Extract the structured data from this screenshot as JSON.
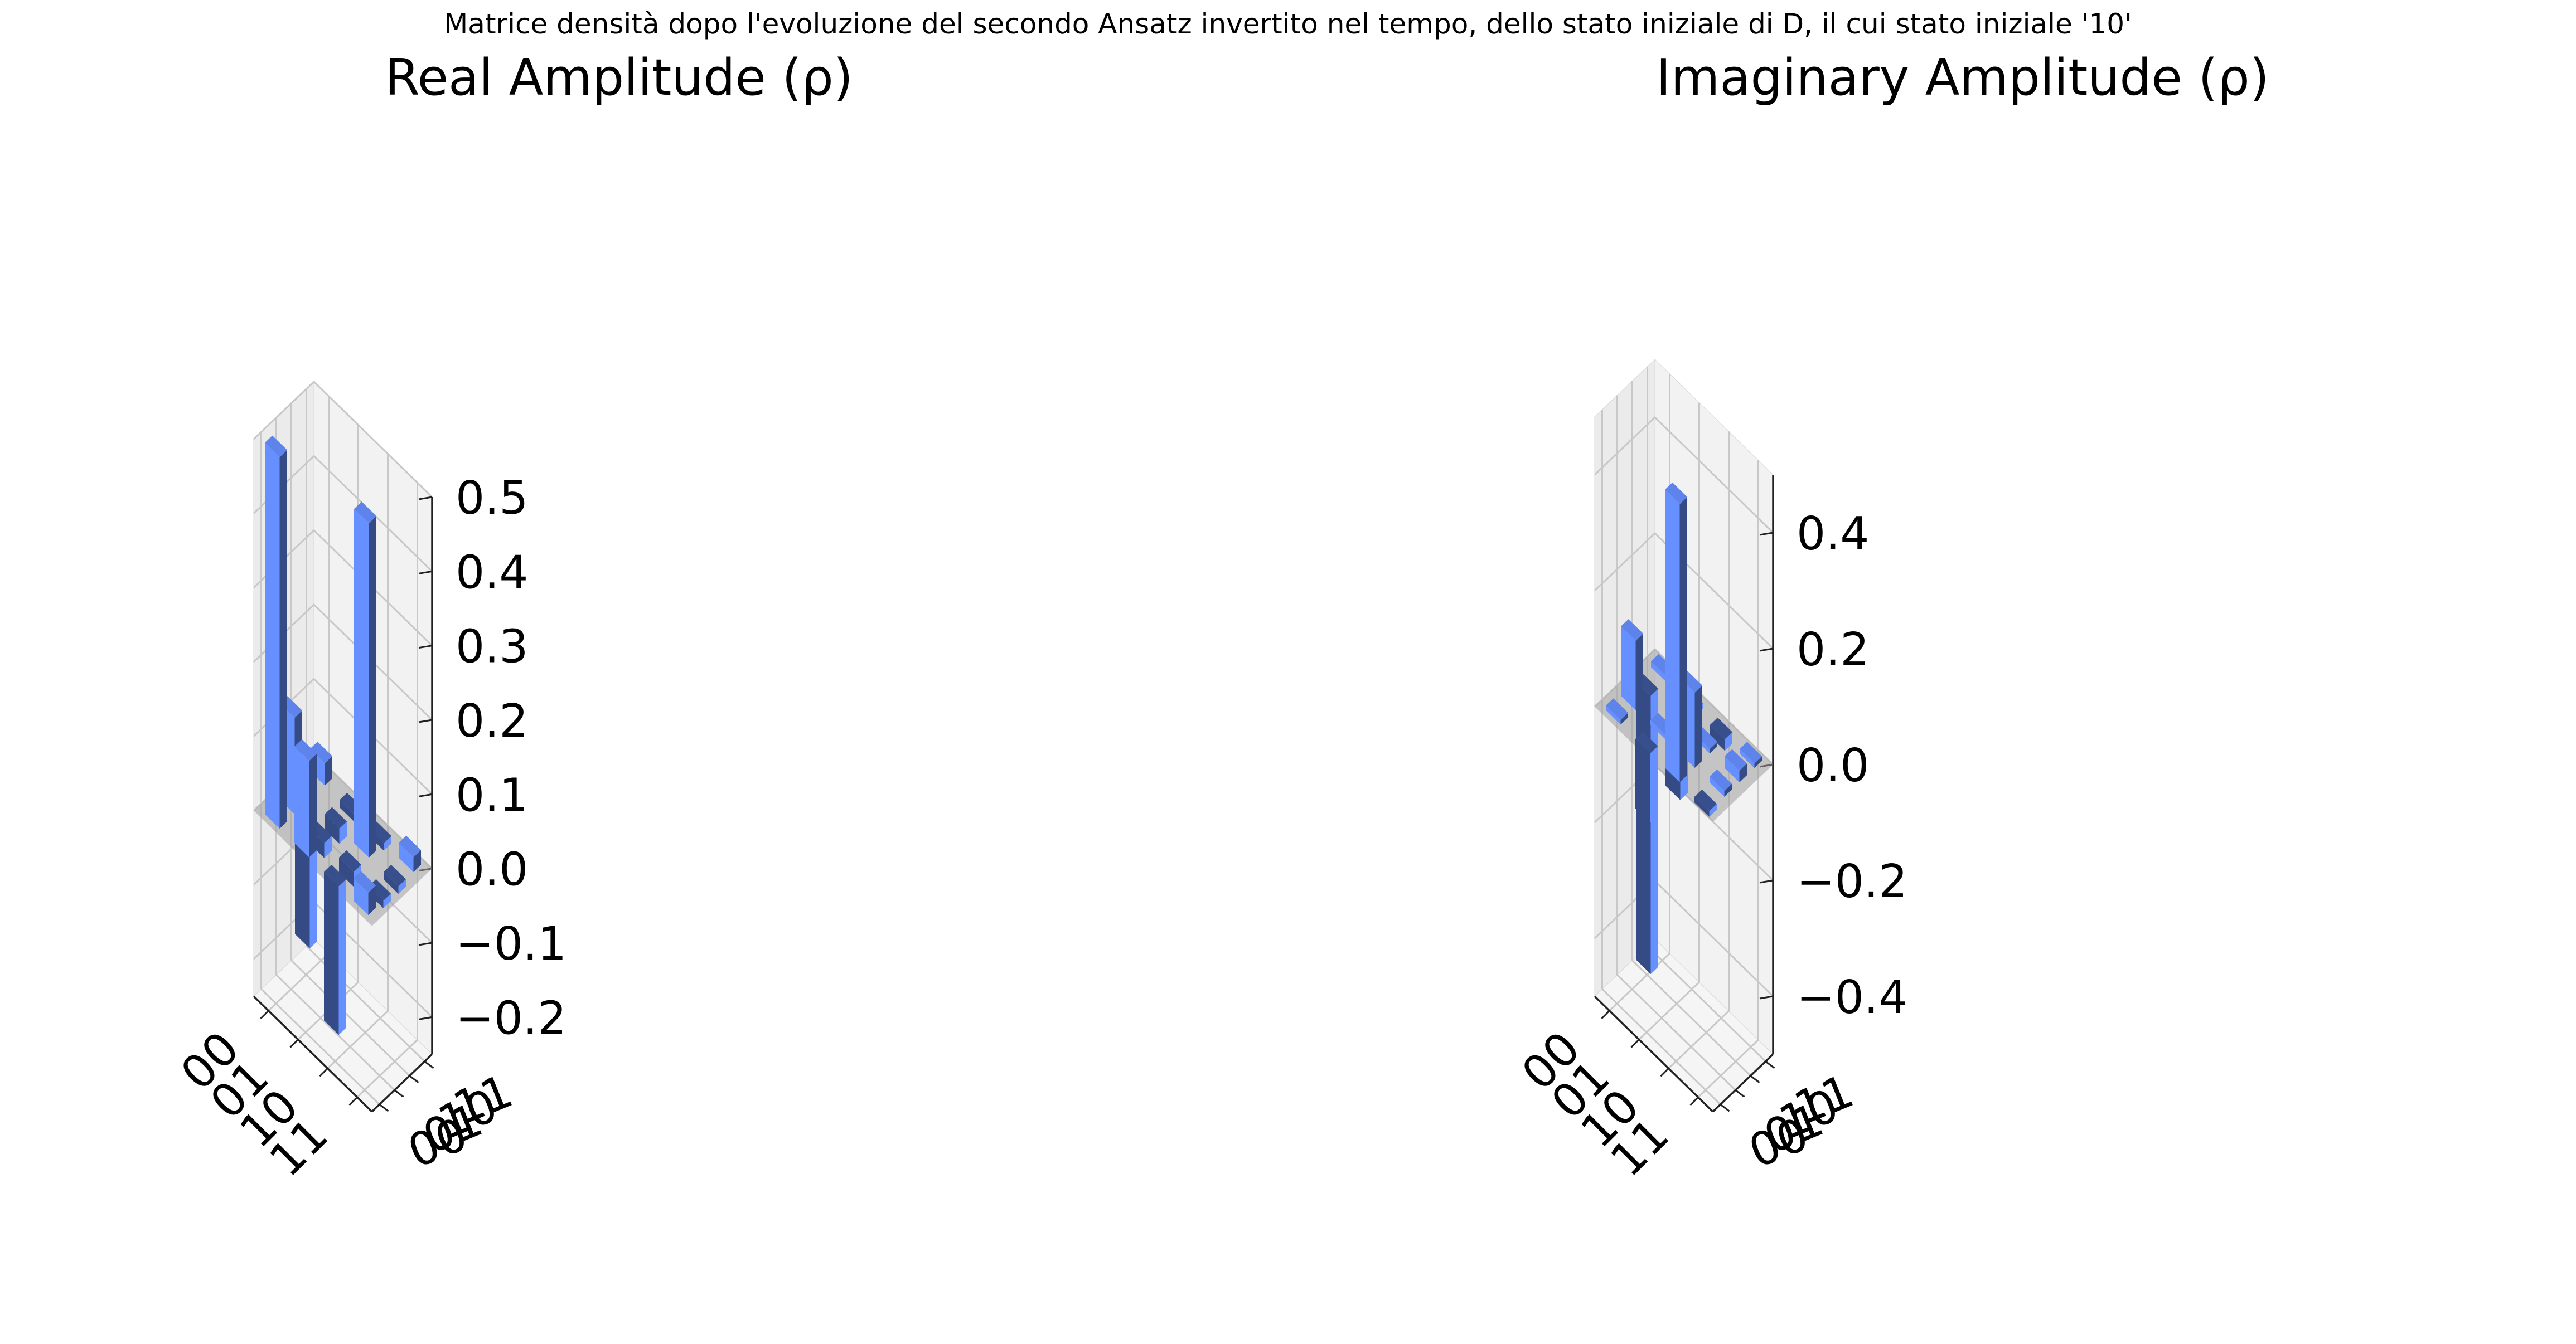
{
  "suptitle": "Matrice densità dopo l'evoluzione del secondo Ansatz invertito nel tempo, dello stato iniziale di D, il cui stato iniziale '10'",
  "colors": {
    "pos_light": "#6690ff",
    "neg_dark": "#354b86",
    "top": "#5a80e6",
    "pane_back": "#f2f2f2",
    "pane_side": "#ebebeb",
    "pane_floor": "#f5f5f5",
    "grid": "#c8c8c8",
    "zero_plane": "#9e9e9e"
  },
  "chart_data": [
    {
      "type": "bar3d",
      "title": "Real Amplitude (ρ)",
      "row_labels": [
        "00",
        "01",
        "10",
        "11"
      ],
      "col_labels": [
        "00",
        "01",
        "10",
        "11"
      ],
      "zlim": [
        -0.25,
        0.5
      ],
      "zticks": [
        -0.2,
        -0.1,
        0.0,
        0.1,
        0.2,
        0.3,
        0.4,
        0.5
      ],
      "ztick_labels": [
        "−0.2",
        "−0.1",
        "0.0",
        "0.1",
        "0.2",
        "0.3",
        "0.4",
        "0.5"
      ],
      "matrix": [
        [
          0.5,
          0.13,
          -0.2,
          0.03
        ],
        [
          0.13,
          -0.02,
          -0.02,
          -0.01
        ],
        [
          -0.2,
          -0.02,
          0.45,
          -0.01
        ],
        [
          0.03,
          -0.01,
          -0.01,
          0.02
        ]
      ]
    },
    {
      "type": "bar3d",
      "title": "Imaginary Amplitude (ρ)",
      "row_labels": [
        "00",
        "01",
        "10",
        "11"
      ],
      "col_labels": [
        "00",
        "01",
        "10",
        "11"
      ],
      "zlim": [
        -0.5,
        0.5
      ],
      "zticks": [
        -0.4,
        -0.2,
        0.0,
        0.2,
        0.4
      ],
      "ztick_labels": [
        "−0.4",
        "−0.2",
        "0.0",
        "0.2",
        "0.4"
      ],
      "matrix": [
        [
          0.0,
          0.12,
          -0.48,
          0.01
        ],
        [
          -0.12,
          0.0,
          -0.13,
          -0.01
        ],
        [
          0.48,
          0.13,
          0.0,
          -0.02
        ],
        [
          -0.01,
          0.01,
          0.02,
          0.0
        ]
      ]
    }
  ]
}
